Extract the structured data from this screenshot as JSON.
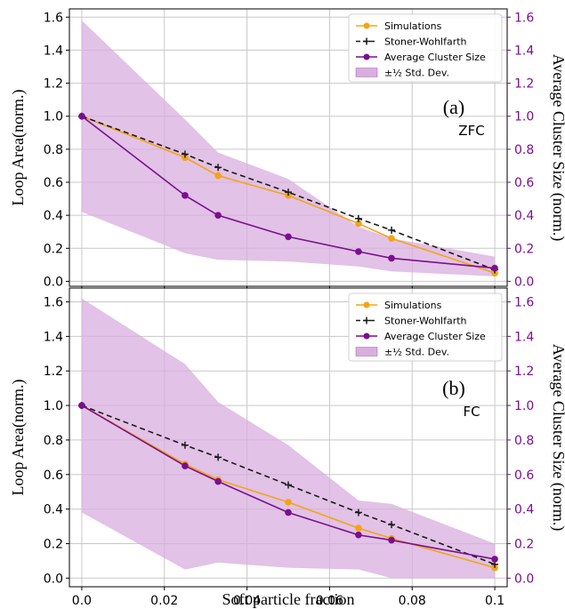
{
  "colors": {
    "simulations": "#f5a316",
    "stoner_wohlfarth": "#1a1a1a",
    "cluster": "#7a0f8f",
    "band_fill": "#d8aedd",
    "right_axis": "#7a0f8f",
    "grid": "#c8c8c8"
  },
  "chart_data": [
    {
      "type": "line",
      "panel_label": "(a)",
      "condition": "ZFC",
      "xlabel": "",
      "ylabel": "Loop Area(norm.)",
      "ylabel_right": "Average Cluster Size (norm.)",
      "xlim": [
        -0.003,
        0.103
      ],
      "ylim": [
        -0.03,
        1.65
      ],
      "xticks": [
        0.0,
        0.02,
        0.04,
        0.06,
        0.08,
        0.1
      ],
      "xtick_labels": [],
      "yticks": [
        0.0,
        0.2,
        0.4,
        0.6,
        0.8,
        1.0,
        1.2,
        1.4,
        1.6
      ],
      "ytick_labels": [
        "0.0",
        "0.2",
        "0.4",
        "0.6",
        "0.8",
        "1.0",
        "1.2",
        "1.4",
        "1.6"
      ],
      "legend_position": "top-right",
      "grid": true,
      "series": [
        {
          "name": "Simulations",
          "kind": "line-dot",
          "color": "#f5a316",
          "x": [
            0.0,
            0.025,
            0.033,
            0.05,
            0.067,
            0.075,
            0.1
          ],
          "y": [
            1.0,
            0.75,
            0.64,
            0.52,
            0.35,
            0.26,
            0.05
          ]
        },
        {
          "name": "Stoner-Wohlfarth",
          "kind": "dashed-plus",
          "color": "#1a1a1a",
          "x": [
            0.0,
            0.025,
            0.033,
            0.05,
            0.067,
            0.075,
            0.1
          ],
          "y": [
            1.0,
            0.77,
            0.69,
            0.54,
            0.38,
            0.31,
            0.07
          ]
        },
        {
          "name": "Average Cluster Size",
          "kind": "line-dot",
          "color": "#7a0f8f",
          "x": [
            0.0,
            0.025,
            0.033,
            0.05,
            0.067,
            0.075,
            0.1
          ],
          "y": [
            1.0,
            0.52,
            0.4,
            0.27,
            0.18,
            0.14,
            0.08
          ]
        },
        {
          "name": "±½ Std. Dev.",
          "kind": "band",
          "color": "#d8aedd",
          "x": [
            0.0,
            0.025,
            0.033,
            0.05,
            0.067,
            0.075,
            0.1
          ],
          "upper": [
            1.58,
            0.98,
            0.78,
            0.62,
            0.33,
            0.26,
            0.15
          ],
          "lower": [
            0.42,
            0.17,
            0.13,
            0.12,
            0.09,
            0.06,
            0.03
          ]
        }
      ]
    },
    {
      "type": "line",
      "panel_label": "(b)",
      "condition": "FC",
      "xlabel": "Soft particle fraction",
      "ylabel": "Loop Area(norm.)",
      "ylabel_right": "Average Cluster Size (norm.)",
      "xlim": [
        -0.003,
        0.103
      ],
      "ylim": [
        -0.05,
        1.68
      ],
      "xticks": [
        0.0,
        0.02,
        0.04,
        0.06,
        0.08,
        0.1
      ],
      "xtick_labels": [
        "0.0",
        "0.02",
        "0.04",
        "0.06",
        "0.08",
        "0.1"
      ],
      "yticks": [
        0.0,
        0.2,
        0.4,
        0.6,
        0.8,
        1.0,
        1.2,
        1.4,
        1.6
      ],
      "ytick_labels": [
        "0.0",
        "0.2",
        "0.4",
        "0.6",
        "0.8",
        "1.0",
        "1.2",
        "1.4",
        "1.6"
      ],
      "legend_position": "top-right",
      "grid": true,
      "series": [
        {
          "name": "Simulations",
          "kind": "line-dot",
          "color": "#f5a316",
          "x": [
            0.0,
            0.025,
            0.033,
            0.05,
            0.067,
            0.075,
            0.1
          ],
          "y": [
            1.0,
            0.66,
            0.57,
            0.44,
            0.29,
            0.23,
            0.06
          ]
        },
        {
          "name": "Stoner-Wohlfarth",
          "kind": "dashed-plus",
          "color": "#1a1a1a",
          "x": [
            0.0,
            0.025,
            0.033,
            0.05,
            0.067,
            0.075,
            0.1
          ],
          "y": [
            1.0,
            0.77,
            0.7,
            0.54,
            0.38,
            0.31,
            0.08
          ]
        },
        {
          "name": "Average Cluster Size",
          "kind": "line-dot",
          "color": "#7a0f8f",
          "x": [
            0.0,
            0.025,
            0.033,
            0.05,
            0.067,
            0.075,
            0.1
          ],
          "y": [
            1.0,
            0.65,
            0.56,
            0.38,
            0.25,
            0.22,
            0.11
          ]
        },
        {
          "name": "±½ Std. Dev.",
          "kind": "band",
          "color": "#d8aedd",
          "x": [
            0.0,
            0.025,
            0.033,
            0.05,
            0.067,
            0.075,
            0.1
          ],
          "upper": [
            1.62,
            1.24,
            1.02,
            0.77,
            0.45,
            0.43,
            0.2
          ],
          "lower": [
            0.38,
            0.05,
            0.09,
            0.06,
            0.05,
            0.0,
            0.0
          ]
        }
      ]
    }
  ]
}
